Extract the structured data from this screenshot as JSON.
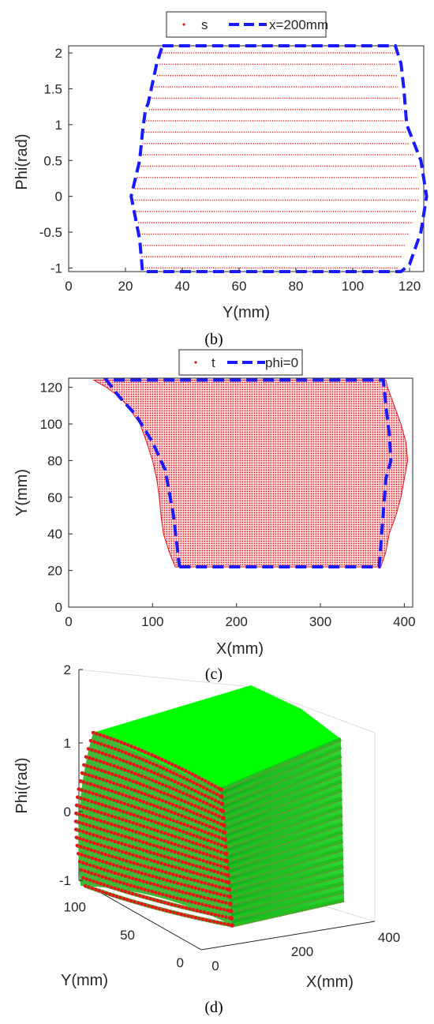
{
  "chart_data": [
    {
      "type": "scatter",
      "panel_label": "(b)",
      "xlabel": "Y(mm)",
      "ylabel": "Phi(rad)",
      "xlim": [
        0,
        125
      ],
      "ylim": [
        -1.05,
        2.1
      ],
      "xticks": [
        "0",
        "20",
        "40",
        "60",
        "80",
        "100",
        "120"
      ],
      "yticks": [
        "-1",
        "-0.5",
        "0",
        "0.5",
        "1",
        "1.5",
        "2"
      ],
      "legend": {
        "placement": "top-outside",
        "entries": [
          "s",
          "x=200mm"
        ]
      },
      "scatter_series": {
        "name": "s",
        "color": "#e6141b",
        "rows_phi_from": -1.0,
        "rows_phi_to": 2.0,
        "rows_count": 20
      },
      "boundary": {
        "name": "x=200mm",
        "color": "#1a1aff",
        "x": [
          33,
          115,
          117,
          118,
          119,
          124,
          126,
          124,
          120,
          117,
          116,
          26,
          25,
          23,
          22,
          25,
          26,
          27,
          28,
          31,
          33
        ],
        "y": [
          2.1,
          2.1,
          1.85,
          1.5,
          1.0,
          0.5,
          0.0,
          -0.5,
          -0.95,
          -1.05,
          -1.05,
          -1.05,
          -0.6,
          -0.2,
          0.0,
          0.5,
          0.9,
          1.2,
          1.3,
          1.85,
          2.1
        ]
      },
      "row_extent": {
        "phi": [
          -1.0,
          -0.5,
          0.0,
          0.5,
          1.0,
          1.5,
          2.0
        ],
        "left": [
          26,
          25,
          23,
          25,
          27,
          30,
          33
        ],
        "right": [
          116,
          120,
          124,
          122,
          118,
          116,
          115
        ]
      }
    },
    {
      "type": "scatter",
      "panel_label": "(c)",
      "xlabel": "X(mm)",
      "ylabel": "Y(mm)",
      "xlim": [
        0,
        410
      ],
      "ylim": [
        0,
        125
      ],
      "xticks": [
        "0",
        "100",
        "200",
        "300",
        "400"
      ],
      "yticks": [
        "0",
        "20",
        "40",
        "60",
        "80",
        "100",
        "120"
      ],
      "legend": {
        "placement": "top-outside",
        "entries": [
          "t",
          "phi=0"
        ]
      },
      "scatter_series": {
        "name": "t",
        "color": "#e6141b"
      },
      "region": {
        "y": [
          22,
          30,
          40,
          50,
          60,
          70,
          80,
          90,
          100,
          110,
          115,
          120,
          124
        ],
        "left": [
          127,
          120,
          113,
          110,
          108,
          105,
          100,
          93,
          85,
          70,
          60,
          45,
          30
        ],
        "right": [
          372,
          378,
          382,
          390,
          396,
          400,
          404,
          402,
          396,
          388,
          384,
          380,
          378
        ]
      },
      "boundary": {
        "name": "phi=0",
        "color": "#1a1aff",
        "x": [
          132,
          370,
          373,
          378,
          384,
          382,
          378,
          375,
          45,
          60,
          80,
          100,
          115,
          125,
          130,
          132
        ],
        "y": [
          22,
          22,
          40,
          70,
          80,
          95,
          110,
          124,
          124,
          115,
          105,
          90,
          75,
          50,
          30,
          22
        ]
      }
    },
    {
      "type": "scatter",
      "panel_label": "(d)",
      "dimension": "3d",
      "xlabel": "X(mm)",
      "ylabel": "Y(mm)",
      "zlabel": "Phi(rad)",
      "xlim": [
        0,
        400
      ],
      "ylim": [
        0,
        125
      ],
      "zlim": [
        -1,
        2
      ],
      "xticks": [
        "0",
        "200",
        "400"
      ],
      "yticks": [
        "0",
        "50",
        "100"
      ],
      "zticks": [
        "-1",
        "0",
        "1",
        "2"
      ],
      "surface_color": "#00ff00",
      "point_color": "#e6141b",
      "layers_count": 20
    }
  ]
}
